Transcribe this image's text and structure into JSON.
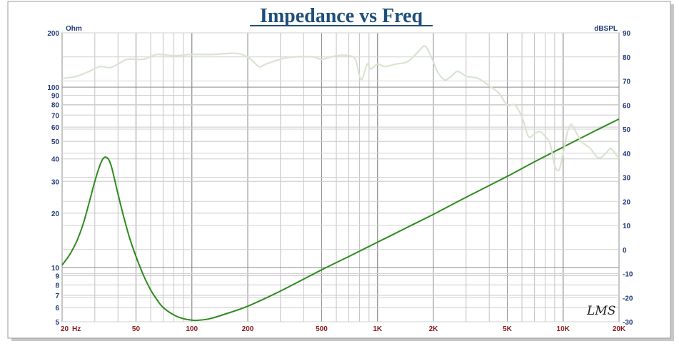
{
  "chart_data": {
    "type": "line",
    "title": "Impedance vs Freq",
    "x_scale": "log",
    "xlim": [
      20,
      20000
    ],
    "x_ticks": [
      {
        "value": 20,
        "label": "20"
      },
      {
        "value": 50,
        "label": "50"
      },
      {
        "value": 100,
        "label": "100"
      },
      {
        "value": 200,
        "label": "200"
      },
      {
        "value": 500,
        "label": "500"
      },
      {
        "value": 1000,
        "label": "1K"
      },
      {
        "value": 2000,
        "label": "2K"
      },
      {
        "value": 5000,
        "label": "5K"
      },
      {
        "value": 10000,
        "label": "10K"
      },
      {
        "value": 20000,
        "label": "20K"
      }
    ],
    "x_unit_label": "Hz",
    "y_left": {
      "unit": "Ohm",
      "scale": "log",
      "ylim": [
        5,
        200
      ],
      "ticks": [
        {
          "value": 200,
          "label": "200"
        },
        {
          "value": 100,
          "label": "100"
        },
        {
          "value": 90,
          "label": "90"
        },
        {
          "value": 80,
          "label": "80"
        },
        {
          "value": 70,
          "label": "70"
        },
        {
          "value": 60,
          "label": "60"
        },
        {
          "value": 50,
          "label": "50"
        },
        {
          "value": 40,
          "label": "40"
        },
        {
          "value": 30,
          "label": "30"
        },
        {
          "value": 20,
          "label": "20"
        },
        {
          "value": 10,
          "label": "10"
        },
        {
          "value": 9,
          "label": "9"
        },
        {
          "value": 8,
          "label": "8"
        },
        {
          "value": 7,
          "label": "7"
        },
        {
          "value": 6,
          "label": "6"
        },
        {
          "value": 5,
          "label": "5"
        }
      ]
    },
    "y_right": {
      "unit": "dBSPL",
      "scale": "linear",
      "ylim": [
        -30,
        90
      ],
      "ticks": [
        {
          "value": 90,
          "label": "90"
        },
        {
          "value": 80,
          "label": "80"
        },
        {
          "value": 70,
          "label": "70"
        },
        {
          "value": 60,
          "label": "60"
        },
        {
          "value": 50,
          "label": "50"
        },
        {
          "value": 40,
          "label": "40"
        },
        {
          "value": 30,
          "label": "30"
        },
        {
          "value": 20,
          "label": "20"
        },
        {
          "value": 10,
          "label": "10"
        },
        {
          "value": 0,
          "label": "0"
        },
        {
          "value": -10,
          "label": "-10"
        },
        {
          "value": -20,
          "label": "-20"
        },
        {
          "value": -30,
          "label": "-30"
        }
      ]
    },
    "grid": true,
    "series": [
      {
        "axis": "left",
        "color": "#2e8b1e",
        "points": [
          [
            20,
            10.3
          ],
          [
            22,
            11.8
          ],
          [
            24,
            14
          ],
          [
            26,
            17.5
          ],
          [
            28,
            23
          ],
          [
            30,
            30
          ],
          [
            32,
            37
          ],
          [
            33.5,
            40.5
          ],
          [
            35,
            40.5
          ],
          [
            36.5,
            37.5
          ],
          [
            38,
            32
          ],
          [
            40,
            25.5
          ],
          [
            43,
            19
          ],
          [
            46,
            14.8
          ],
          [
            50,
            11.5
          ],
          [
            55,
            9.0
          ],
          [
            60,
            7.5
          ],
          [
            65,
            6.6
          ],
          [
            70,
            6.0
          ],
          [
            80,
            5.45
          ],
          [
            90,
            5.2
          ],
          [
            100,
            5.1
          ],
          [
            110,
            5.1
          ],
          [
            125,
            5.2
          ],
          [
            150,
            5.5
          ],
          [
            200,
            6.1
          ],
          [
            300,
            7.4
          ],
          [
            500,
            9.7
          ],
          [
            700,
            11.5
          ],
          [
            1000,
            13.8
          ],
          [
            1500,
            17.0
          ],
          [
            2000,
            19.7
          ],
          [
            3000,
            24.5
          ],
          [
            5000,
            32.0
          ],
          [
            7000,
            38.5
          ],
          [
            10000,
            46.5
          ],
          [
            15000,
            57.5
          ],
          [
            20000,
            66.5
          ]
        ]
      },
      {
        "axis": "right",
        "color": "#d9e4d0",
        "points": [
          [
            20,
            71
          ],
          [
            24,
            72
          ],
          [
            28,
            74
          ],
          [
            32,
            76
          ],
          [
            36,
            75.5
          ],
          [
            40,
            77
          ],
          [
            45,
            79
          ],
          [
            55,
            79
          ],
          [
            65,
            81
          ],
          [
            80,
            80.5
          ],
          [
            100,
            81
          ],
          [
            130,
            81
          ],
          [
            170,
            81.5
          ],
          [
            200,
            80
          ],
          [
            230,
            76
          ],
          [
            250,
            77
          ],
          [
            300,
            79
          ],
          [
            350,
            80
          ],
          [
            450,
            80
          ],
          [
            500,
            79
          ],
          [
            600,
            80.5
          ],
          [
            700,
            80.5
          ],
          [
            760,
            79
          ],
          [
            800,
            72
          ],
          [
            830,
            71
          ],
          [
            880,
            77
          ],
          [
            920,
            75
          ],
          [
            1000,
            77
          ],
          [
            1100,
            76
          ],
          [
            1250,
            77
          ],
          [
            1450,
            78
          ],
          [
            1650,
            82
          ],
          [
            1800,
            84.5
          ],
          [
            1950,
            80
          ],
          [
            2100,
            74
          ],
          [
            2300,
            70.5
          ],
          [
            2500,
            72
          ],
          [
            2700,
            74
          ],
          [
            3000,
            72
          ],
          [
            3500,
            71
          ],
          [
            4000,
            68
          ],
          [
            4500,
            65
          ],
          [
            5000,
            60
          ],
          [
            5500,
            60
          ],
          [
            6000,
            55
          ],
          [
            6500,
            47
          ],
          [
            7000,
            48
          ],
          [
            7500,
            49
          ],
          [
            8000,
            47
          ],
          [
            8500,
            44
          ],
          [
            9000,
            35
          ],
          [
            9500,
            33
          ],
          [
            10000,
            40
          ],
          [
            10500,
            48
          ],
          [
            11000,
            52
          ],
          [
            11500,
            50
          ],
          [
            12500,
            45
          ],
          [
            14000,
            42
          ],
          [
            15500,
            38
          ],
          [
            17000,
            40
          ],
          [
            18000,
            42
          ],
          [
            19000,
            40
          ],
          [
            20000,
            38
          ]
        ]
      }
    ]
  },
  "watermark": "LMS"
}
